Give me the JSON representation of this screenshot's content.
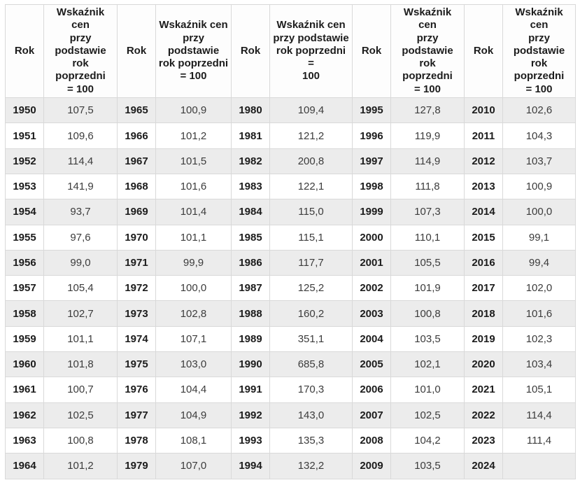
{
  "colors": {
    "stripe": "#ececec",
    "border": "#d9d9d9",
    "header_bg": "#fdfdfd",
    "year_text": "#1c1c1c",
    "value_text": "#3c3c3c",
    "page_bg": "#ffffff"
  },
  "chart_data": {
    "type": "table",
    "header": {
      "year": "Rok",
      "value": "Wskaźnik cen przy podstawie rok poprzedni = 100",
      "value_narrow": "Wskaźnik cen\nprzy\npodstawie\nrok poprzedni\n= 100",
      "value_wide": "Wskaźnik cen\nprzy podstawie\nrok poprzedni =\n100"
    },
    "groups": [
      {
        "wrap": "narrow",
        "rows": [
          [
            "1950",
            "107,5"
          ],
          [
            "1951",
            "109,6"
          ],
          [
            "1952",
            "114,4"
          ],
          [
            "1953",
            "141,9"
          ],
          [
            "1954",
            "93,7"
          ],
          [
            "1955",
            "97,6"
          ],
          [
            "1956",
            "99,0"
          ],
          [
            "1957",
            "105,4"
          ],
          [
            "1958",
            "102,7"
          ],
          [
            "1959",
            "101,1"
          ],
          [
            "1960",
            "101,8"
          ],
          [
            "1961",
            "100,7"
          ],
          [
            "1962",
            "102,5"
          ],
          [
            "1963",
            "100,8"
          ],
          [
            "1964",
            "101,2"
          ]
        ]
      },
      {
        "wrap": "narrow",
        "rows": [
          [
            "1965",
            "100,9"
          ],
          [
            "1966",
            "101,2"
          ],
          [
            "1967",
            "101,5"
          ],
          [
            "1968",
            "101,6"
          ],
          [
            "1969",
            "101,4"
          ],
          [
            "1970",
            "101,1"
          ],
          [
            "1971",
            "99,9"
          ],
          [
            "1972",
            "100,0"
          ],
          [
            "1973",
            "102,8"
          ],
          [
            "1974",
            "107,1"
          ],
          [
            "1975",
            "103,0"
          ],
          [
            "1976",
            "104,4"
          ],
          [
            "1977",
            "104,9"
          ],
          [
            "1978",
            "108,1"
          ],
          [
            "1979",
            "107,0"
          ]
        ]
      },
      {
        "wrap": "wide",
        "rows": [
          [
            "1980",
            "109,4"
          ],
          [
            "1981",
            "121,2"
          ],
          [
            "1982",
            "200,8"
          ],
          [
            "1983",
            "122,1"
          ],
          [
            "1984",
            "115,0"
          ],
          [
            "1985",
            "115,1"
          ],
          [
            "1986",
            "117,7"
          ],
          [
            "1987",
            "125,2"
          ],
          [
            "1988",
            "160,2"
          ],
          [
            "1989",
            "351,1"
          ],
          [
            "1990",
            "685,8"
          ],
          [
            "1991",
            "170,3"
          ],
          [
            "1992",
            "143,0"
          ],
          [
            "1993",
            "135,3"
          ],
          [
            "1994",
            "132,2"
          ]
        ]
      },
      {
        "wrap": "narrow",
        "rows": [
          [
            "1995",
            "127,8"
          ],
          [
            "1996",
            "119,9"
          ],
          [
            "1997",
            "114,9"
          ],
          [
            "1998",
            "111,8"
          ],
          [
            "1999",
            "107,3"
          ],
          [
            "2000",
            "110,1"
          ],
          [
            "2001",
            "105,5"
          ],
          [
            "2002",
            "101,9"
          ],
          [
            "2003",
            "100,8"
          ],
          [
            "2004",
            "103,5"
          ],
          [
            "2005",
            "102,1"
          ],
          [
            "2006",
            "101,0"
          ],
          [
            "2007",
            "102,5"
          ],
          [
            "2008",
            "104,2"
          ],
          [
            "2009",
            "103,5"
          ]
        ]
      },
      {
        "wrap": "narrow",
        "rows": [
          [
            "2010",
            "102,6"
          ],
          [
            "2011",
            "104,3"
          ],
          [
            "2012",
            "103,7"
          ],
          [
            "2013",
            "100,9"
          ],
          [
            "2014",
            "100,0"
          ],
          [
            "2015",
            "99,1"
          ],
          [
            "2016",
            "99,4"
          ],
          [
            "2017",
            "102,0"
          ],
          [
            "2018",
            "101,6"
          ],
          [
            "2019",
            "102,3"
          ],
          [
            "2020",
            "103,4"
          ],
          [
            "2021",
            "105,1"
          ],
          [
            "2022",
            "114,4"
          ],
          [
            "2023",
            "111,4"
          ],
          [
            "2024",
            ""
          ]
        ]
      }
    ]
  }
}
